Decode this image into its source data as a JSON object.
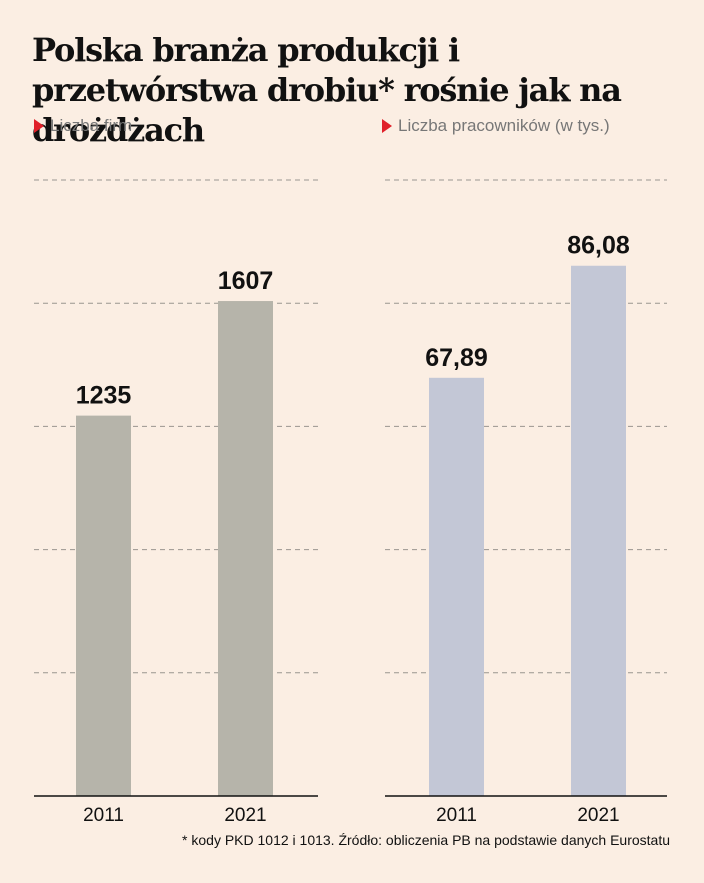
{
  "title": "Polska branża produkcji i przetwórstwa drobiu* rośnie jak na drożdżach",
  "footnote": "* kody PKD 1012 i 1013. Źródło: obliczenia PB na podstawie danych Eurostatu",
  "colors": {
    "background": "#fbeee3",
    "bar_left": "#b6b4aa",
    "bar_right": "#c3c7d6",
    "marker": "#e0202a"
  },
  "chart_data": [
    {
      "type": "bar",
      "title": "Liczba firm",
      "categories": [
        "2011",
        "2021"
      ],
      "values": [
        1235,
        1607
      ],
      "value_labels": [
        "1235",
        "1607"
      ],
      "ylim": [
        0,
        2000
      ],
      "grid": true
    },
    {
      "type": "bar",
      "title": "Liczba pracowników (w tys.)",
      "categories": [
        "2011",
        "2021"
      ],
      "values": [
        67.89,
        86.08
      ],
      "value_labels": [
        "67,89",
        "86,08"
      ],
      "ylim": [
        0,
        100
      ],
      "grid": true
    }
  ]
}
